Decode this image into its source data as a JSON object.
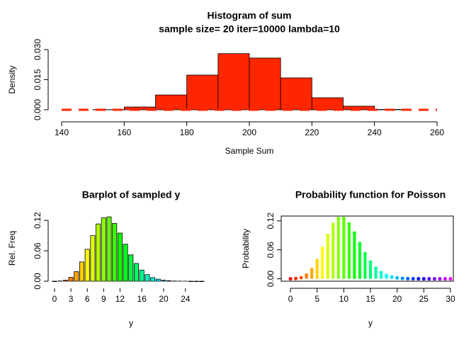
{
  "chart_data": [
    {
      "type": "histogram",
      "title": "Histogram of sum",
      "subtitle": "sample size= 20 iter=10000 lambda=10",
      "x_label": "Sample Sum",
      "y_label": "Density",
      "bins": [
        140,
        150,
        160,
        170,
        180,
        190,
        200,
        210,
        220,
        230,
        240,
        250,
        260
      ],
      "values": [
        0,
        0.0001,
        0.0014,
        0.0074,
        0.0173,
        0.028,
        0.0258,
        0.0159,
        0.006,
        0.0018,
        0.0002,
        0
      ],
      "color": "#ff2600",
      "xlim": [
        140,
        260
      ],
      "xticks": [
        140,
        160,
        180,
        200,
        220,
        240,
        260
      ],
      "ylim": [
        0,
        0.03
      ],
      "yticks": [
        {
          "value": 0,
          "label": "0.000"
        },
        {
          "value": 0.015,
          "label": "0.015"
        },
        {
          "value": 0.03,
          "label": "0.030"
        }
      ]
    },
    {
      "type": "bar",
      "title": "Barplot of sampled y",
      "x_label": "y",
      "y_label": "Rel. Freq",
      "categories": [
        "0",
        null,
        null,
        "3",
        null,
        null,
        "6",
        null,
        null,
        "9",
        null,
        null,
        "12",
        null,
        null,
        null,
        "16",
        null,
        null,
        null,
        "20",
        null,
        null,
        null,
        "24",
        null,
        null,
        null
      ],
      "values": [
        0,
        0.0005,
        0.002,
        0.0076,
        0.019,
        0.038,
        0.063,
        0.09,
        0.113,
        0.125,
        0.127,
        0.114,
        0.095,
        0.073,
        0.052,
        0.035,
        0.022,
        0.013,
        0.007,
        0.004,
        0.002,
        0.001,
        0.0004,
        0.0002,
        0.0001,
        0,
        0,
        0
      ],
      "palette": "rainbow",
      "ylim": [
        0,
        0.13
      ],
      "yticks": [
        {
          "value": 0,
          "label": "0.00"
        },
        {
          "value": 0.06,
          "label": "0.06"
        },
        {
          "value": 0.12,
          "label": "0.12"
        }
      ]
    },
    {
      "type": "stem",
      "title": "Probability function for Poisson",
      "x_label": "y",
      "y_label": "Probability",
      "x": [
        0,
        1,
        2,
        3,
        4,
        5,
        6,
        7,
        8,
        9,
        10,
        11,
        12,
        13,
        14,
        15,
        16,
        17,
        18,
        19,
        20,
        21,
        22,
        23,
        24,
        25,
        26,
        27,
        28,
        29,
        30
      ],
      "values": [
        0,
        0.0005,
        0.0023,
        0.0076,
        0.0189,
        0.0378,
        0.0631,
        0.0901,
        0.1126,
        0.1251,
        0.1251,
        0.1137,
        0.0948,
        0.0729,
        0.0521,
        0.0347,
        0.0217,
        0.0128,
        0.0071,
        0.0037,
        0.0019,
        0.0009,
        0.0004,
        0.0002,
        0.0001,
        0,
        0,
        0,
        0,
        0,
        0
      ],
      "palette": "rainbow",
      "xlim": [
        -1.2,
        31.2
      ],
      "xticks": [
        0,
        5,
        10,
        15,
        20,
        25,
        30
      ],
      "ylim": [
        -0.005,
        0.13
      ],
      "yticks": [
        {
          "value": 0,
          "label": "0.00"
        },
        {
          "value": 0.06,
          "label": "0.06"
        },
        {
          "value": 0.12,
          "label": "0.12"
        }
      ]
    }
  ]
}
